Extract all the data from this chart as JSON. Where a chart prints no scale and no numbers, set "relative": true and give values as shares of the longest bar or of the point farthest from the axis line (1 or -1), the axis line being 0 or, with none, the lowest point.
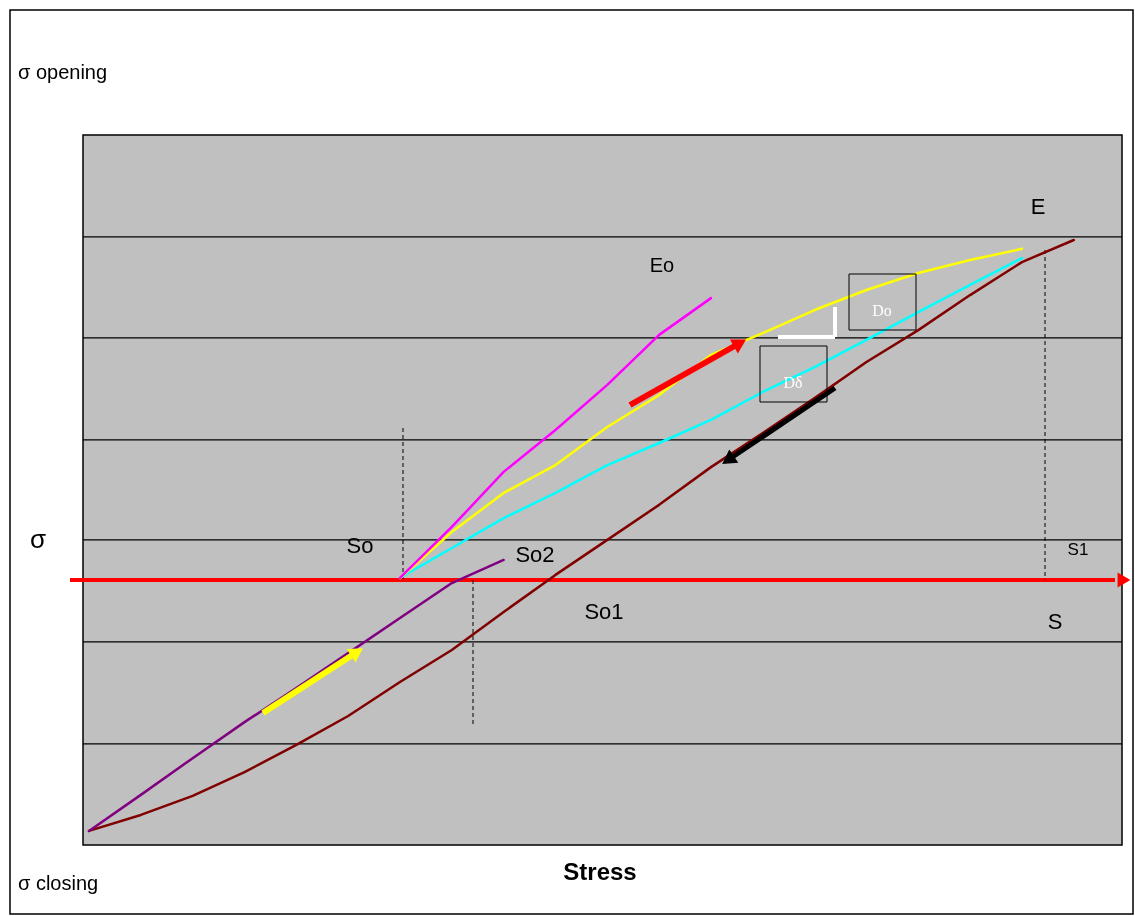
{
  "chart_data": {
    "type": "line",
    "relative": true,
    "xlabel": "Stress",
    "ylabel": "σ",
    "categories": [
      null,
      null,
      null,
      null,
      null,
      null,
      null,
      null,
      null,
      null,
      null,
      null,
      null,
      null,
      null,
      null,
      null,
      null,
      null,
      null
    ],
    "series": [
      {
        "color": "#800000",
        "values": [
          -0.738,
          -0.691,
          -0.635,
          -0.565,
          -0.485,
          -0.4,
          -0.3,
          -0.206,
          -0.094,
          0.015,
          0.118,
          0.221,
          0.332,
          0.432,
          0.535,
          0.641,
          0.735,
          0.838,
          0.935,
          1.0
        ]
      },
      {
        "color": "#800080",
        "values": [
          -0.738,
          -0.632,
          -0.524,
          -0.418,
          -0.318,
          -0.215,
          -0.112,
          -0.009,
          0.059,
          null,
          null,
          null,
          null,
          null,
          null,
          null,
          null,
          null,
          null,
          null
        ]
      },
      {
        "color": "#00ffff",
        "values": [
          null,
          null,
          null,
          null,
          null,
          null,
          0.006,
          0.094,
          0.182,
          0.256,
          0.338,
          0.403,
          0.471,
          0.553,
          0.626,
          0.706,
          0.788,
          0.868,
          0.947,
          null
        ]
      },
      {
        "color": "#ffff00",
        "values": [
          null,
          null,
          null,
          null,
          null,
          null,
          0.006,
          0.141,
          0.256,
          0.338,
          0.45,
          0.544,
          0.662,
          0.726,
          0.794,
          0.853,
          0.903,
          0.941,
          0.974,
          null
        ]
      },
      {
        "color": "#ff00ff",
        "values": [
          null,
          null,
          null,
          null,
          null,
          null,
          0.006,
          0.156,
          0.318,
          0.441,
          0.574,
          0.721,
          0.829,
          null,
          null,
          null,
          null,
          null,
          null,
          null
        ]
      }
    ],
    "ref_lines": [
      {
        "axis": "y",
        "value": 0,
        "color": "#ff0000"
      },
      {
        "axis": "y",
        "value": 1.009,
        "color": "#000000"
      },
      {
        "axis": "y",
        "value": 0.712,
        "color": "#000000"
      },
      {
        "axis": "y",
        "value": 0.412,
        "color": "#000000"
      },
      {
        "axis": "y",
        "value": 0.118,
        "color": "#000000"
      },
      {
        "axis": "y",
        "value": -0.182,
        "color": "#000000"
      },
      {
        "axis": "y",
        "value": -0.482,
        "color": "#000000"
      }
    ],
    "annotations": [
      "σ opening",
      "σ closing",
      "So",
      "So2",
      "So1",
      "S1",
      "S",
      "E",
      "Eo",
      "Do",
      "Dδ"
    ],
    "grid": false,
    "tick_labels": false,
    "marker": "none",
    "line_style": "solid"
  }
}
